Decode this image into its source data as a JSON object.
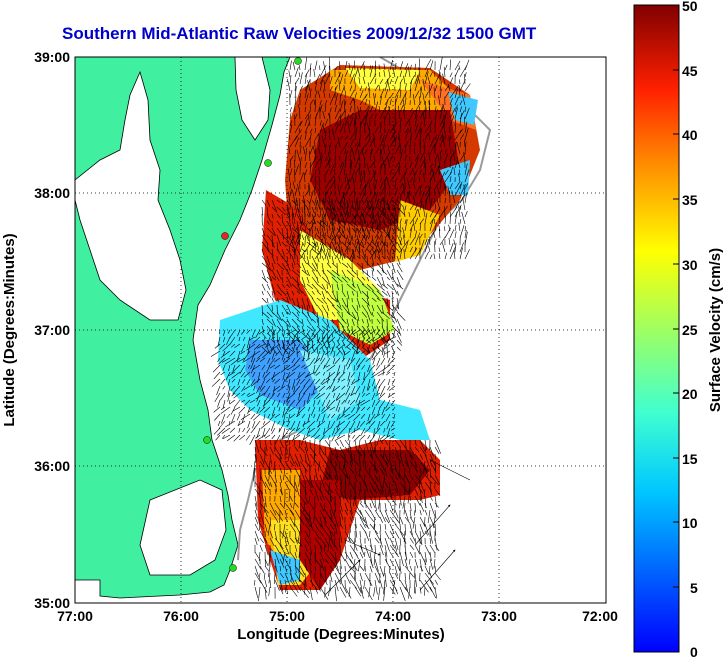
{
  "title": "Southern Mid-Atlantic Raw Velocities 2009/12/32 1500 GMT",
  "x_axis": {
    "label": "Longitude (Degrees:Minutes)",
    "ticks": [
      "77:00",
      "76:00",
      "75:00",
      "74:00",
      "73:00",
      "72:00"
    ]
  },
  "y_axis": {
    "label": "Latitude (Degrees:Minutes)",
    "ticks": [
      "39:00",
      "38:00",
      "37:00",
      "36:00",
      "35:00"
    ]
  },
  "colorbar": {
    "label": "Surface Velocity (cm/s)",
    "ticks": [
      "50",
      "45",
      "40",
      "35",
      "30",
      "25",
      "20",
      "15",
      "10",
      "5",
      "0"
    ],
    "range": [
      0,
      50
    ],
    "colormap": "jet"
  },
  "colors": {
    "land": "#40f0a0",
    "water": "#ffffff",
    "title": "#0000cc",
    "grid": "#000000",
    "bathymetry": "#999999",
    "station_green": "#22dd22",
    "station_red": "#ee2222"
  },
  "map": {
    "lon_range": [
      -77,
      -72
    ],
    "lat_range": [
      35,
      39
    ],
    "grid": "dotted"
  }
}
